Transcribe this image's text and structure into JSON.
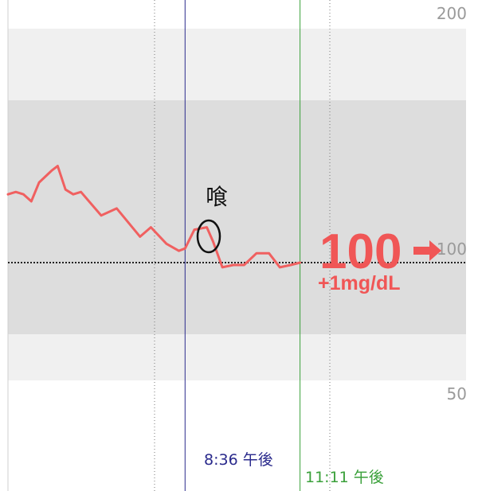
{
  "chart_data": {
    "type": "line",
    "title": "",
    "xlabel": "",
    "ylabel": "",
    "unit": "mg/dL",
    "y_ticks": [
      {
        "value": 200,
        "label": "200"
      },
      {
        "value": 100,
        "label": "100"
      },
      {
        "value": 50,
        "label": "50"
      }
    ],
    "series": [
      {
        "name": "",
        "color": "#f06060",
        "points": [
          [
            0,
            129
          ],
          [
            0.05,
            130
          ],
          [
            0.1,
            129
          ],
          [
            0.15,
            126
          ],
          [
            0.2,
            134
          ],
          [
            0.28,
            139
          ],
          [
            0.32,
            141
          ],
          [
            0.37,
            131
          ],
          [
            0.42,
            129
          ],
          [
            0.47,
            130
          ],
          [
            0.6,
            120
          ],
          [
            0.7,
            123
          ],
          [
            0.8,
            115
          ],
          [
            0.85,
            111
          ],
          [
            0.92,
            115
          ],
          [
            1.02,
            108
          ],
          [
            1.1,
            105
          ],
          [
            1.14,
            106
          ],
          [
            1.2,
            114
          ],
          [
            1.28,
            115
          ],
          [
            1.32,
            109
          ],
          [
            1.38,
            98
          ],
          [
            1.45,
            99
          ],
          [
            1.52,
            99
          ],
          [
            1.6,
            104
          ],
          [
            1.68,
            104
          ],
          [
            1.75,
            98
          ],
          [
            1.82,
            99
          ],
          [
            1.88,
            100
          ]
        ]
      }
    ],
    "target_range_band": [
      75,
      150
    ],
    "markers": [
      {
        "label": "8:36 午後",
        "x": 1.14,
        "color": "#2a2a8c"
      },
      {
        "label": "11:11 午後",
        "x": 1.88,
        "color": "#3aa03a"
      }
    ]
  },
  "current_reading": {
    "value": "100",
    "trend_icon": "arrow-right-icon",
    "delta": "+1mg/dL",
    "color": "#f05656"
  },
  "annotation": {
    "text": "喰",
    "icon": "circle-marker-icon"
  }
}
